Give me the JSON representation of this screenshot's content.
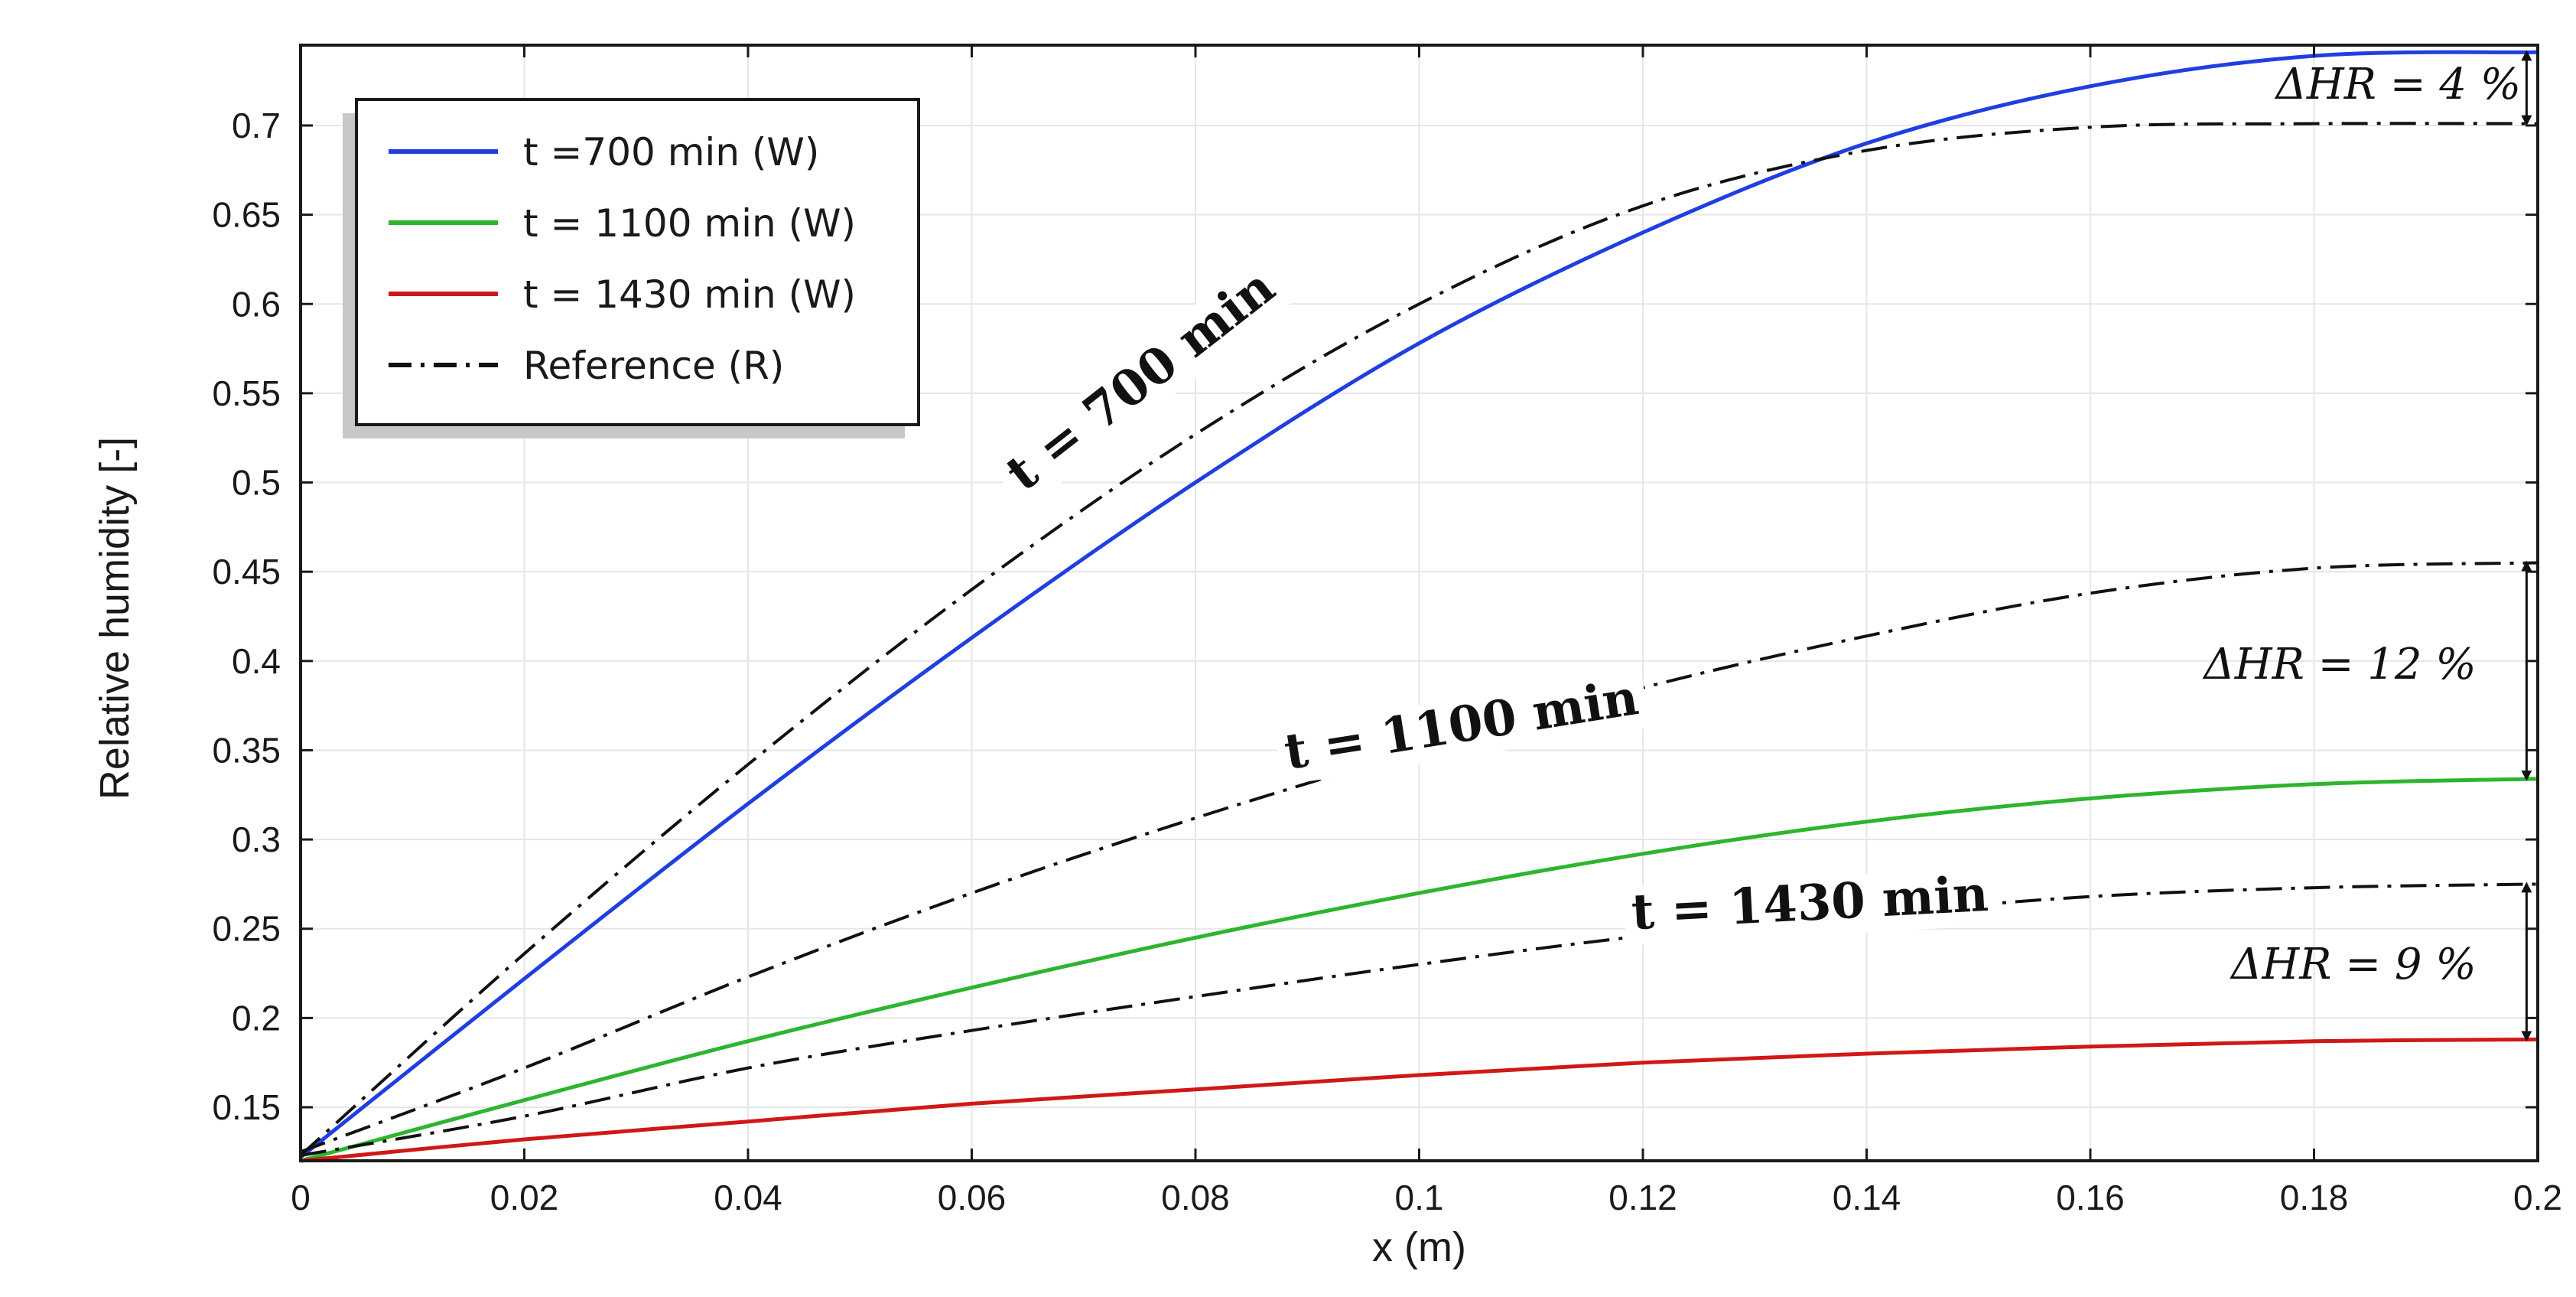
{
  "chart_data": {
    "type": "line",
    "xlabel": "x (m)",
    "ylabel": "Relative humidity [-]",
    "xlim": [
      0,
      0.2
    ],
    "ylim": [
      0.12,
      0.745
    ],
    "xticks": [
      "0",
      "0.02",
      "0.04",
      "0.06",
      "0.08",
      "0.1",
      "0.12",
      "0.14",
      "0.16",
      "0.18",
      "0.2"
    ],
    "xtick_values": [
      0,
      0.02,
      0.04,
      0.06,
      0.08,
      0.1,
      0.12,
      0.14,
      0.16,
      0.18,
      0.2
    ],
    "yticks": [
      "0.15",
      "0.2",
      "0.25",
      "0.3",
      "0.35",
      "0.4",
      "0.45",
      "0.5",
      "0.55",
      "0.6",
      "0.65",
      "0.7"
    ],
    "ytick_values": [
      0.15,
      0.2,
      0.25,
      0.3,
      0.35,
      0.4,
      0.45,
      0.5,
      0.55,
      0.6,
      0.65,
      0.7
    ],
    "grid": true,
    "legend_position": "top-left",
    "legend": [
      {
        "label": "t =700 min (W)",
        "color": "#1f3fe0",
        "style": "solid"
      },
      {
        "label": "t = 1100 min (W)",
        "color": "#2db52d",
        "style": "solid"
      },
      {
        "label": "t = 1430 min (W)",
        "color": "#d01818",
        "style": "solid"
      },
      {
        "label": "Reference  (R)",
        "color": "#111111",
        "style": "dashdot"
      }
    ],
    "series": [
      {
        "name": "t =700 min (W)",
        "color": "#1f3fe0",
        "style": "solid",
        "x": [
          0,
          0.02,
          0.04,
          0.06,
          0.08,
          0.1,
          0.12,
          0.14,
          0.16,
          0.18,
          0.2
        ],
        "y": [
          0.122,
          0.222,
          0.32,
          0.413,
          0.5,
          0.578,
          0.64,
          0.69,
          0.722,
          0.739,
          0.741
        ]
      },
      {
        "name": "t = 1100 min (W)",
        "color": "#2db52d",
        "style": "solid",
        "x": [
          0,
          0.02,
          0.04,
          0.06,
          0.08,
          0.1,
          0.12,
          0.14,
          0.16,
          0.18,
          0.2
        ],
        "y": [
          0.12,
          0.154,
          0.187,
          0.217,
          0.245,
          0.27,
          0.292,
          0.31,
          0.323,
          0.331,
          0.334
        ]
      },
      {
        "name": "t = 1430 min (W)",
        "color": "#d01818",
        "style": "solid",
        "x": [
          0,
          0.02,
          0.04,
          0.06,
          0.08,
          0.1,
          0.12,
          0.14,
          0.16,
          0.18,
          0.2
        ],
        "y": [
          0.12,
          0.132,
          0.142,
          0.152,
          0.16,
          0.168,
          0.175,
          0.18,
          0.184,
          0.187,
          0.188
        ]
      },
      {
        "name": "Reference 700 min (R)",
        "color": "#111111",
        "style": "dashdot",
        "x": [
          0,
          0.02,
          0.04,
          0.06,
          0.08,
          0.1,
          0.12,
          0.14,
          0.16,
          0.18,
          0.2
        ],
        "y": [
          0.123,
          0.236,
          0.342,
          0.44,
          0.527,
          0.6,
          0.655,
          0.686,
          0.699,
          0.701,
          0.701
        ]
      },
      {
        "name": "Reference 1100 min (R)",
        "color": "#111111",
        "style": "dashdot",
        "x": [
          0,
          0.02,
          0.04,
          0.06,
          0.08,
          0.1,
          0.12,
          0.14,
          0.16,
          0.18,
          0.2
        ],
        "y": [
          0.125,
          0.172,
          0.223,
          0.27,
          0.312,
          0.35,
          0.385,
          0.414,
          0.438,
          0.452,
          0.455
        ]
      },
      {
        "name": "Reference 1430 min (R)",
        "color": "#111111",
        "style": "dashdot",
        "x": [
          0,
          0.02,
          0.04,
          0.06,
          0.08,
          0.1,
          0.12,
          0.14,
          0.16,
          0.18,
          0.2
        ],
        "y": [
          0.123,
          0.145,
          0.172,
          0.193,
          0.212,
          0.23,
          0.246,
          0.258,
          0.268,
          0.273,
          0.275
        ]
      }
    ],
    "curve_labels": [
      {
        "text": "t = 700 min",
        "x": 0.076,
        "y": 0.55,
        "angle": -38
      },
      {
        "text": "t = 1100 min",
        "x": 0.104,
        "y": 0.355,
        "angle": -9
      },
      {
        "text": "t = 1430 min",
        "x": 0.135,
        "y": 0.255,
        "angle": -3
      }
    ],
    "annotations": [
      {
        "text": "ΔHR = 4 %",
        "x": 0.199,
        "y_top": 0.741,
        "y_bottom": 0.701,
        "label_x": 0.1985,
        "label_y": 0.715
      },
      {
        "text": "ΔHR = 12 %",
        "x": 0.199,
        "y_top": 0.455,
        "y_bottom": 0.334,
        "label_x": 0.1945,
        "label_y": 0.39
      },
      {
        "text": "ΔHR = 9 %",
        "x": 0.199,
        "y_top": 0.275,
        "y_bottom": 0.188,
        "label_x": 0.1945,
        "label_y": 0.222
      }
    ]
  }
}
